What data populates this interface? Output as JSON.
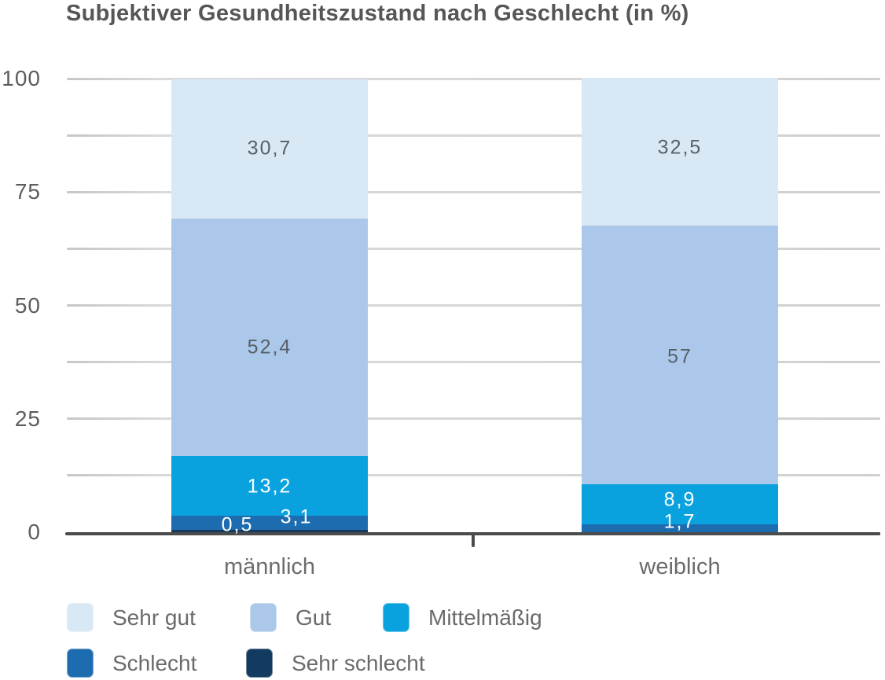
{
  "title": "Subjektiver Gesundheitszustand nach Geschlecht (in %)",
  "y_axis": {
    "tick_labels": [
      "100",
      "75",
      "50",
      "25",
      "0"
    ],
    "tick_values": [
      100,
      75,
      50,
      25,
      0
    ],
    "gridline_values": [
      100,
      87.5,
      75,
      62.5,
      50,
      37.5,
      25,
      12.5
    ]
  },
  "chart_data": {
    "type": "bar",
    "stacked": true,
    "orientation": "vertical",
    "title": "Subjektiver Gesundheitszustand nach Geschlecht (in %)",
    "categories": [
      "männlich",
      "weiblich"
    ],
    "series": [
      {
        "name": "Sehr gut",
        "color": "#d9e8f5",
        "label_color": "#57606a",
        "values": [
          30.7,
          32.5
        ],
        "value_labels": [
          "30,7",
          "32,5"
        ],
        "label_offsets": [
          [
            0,
            0
          ],
          [
            0,
            -5
          ]
        ]
      },
      {
        "name": "Gut",
        "color": "#abc8ea",
        "label_color": "#57606a",
        "values": [
          52.4,
          57.0
        ],
        "value_labels": [
          "52,4",
          "57"
        ],
        "label_offsets": [
          [
            0,
            13
          ],
          [
            0,
            3
          ]
        ]
      },
      {
        "name": "Mittelmäßig",
        "color": "#0aa2de",
        "label_color": "#ffffff",
        "values": [
          13.2,
          8.9
        ],
        "value_labels": [
          "13,2",
          "8,9"
        ],
        "label_offsets": [
          [
            0,
            1
          ],
          [
            0,
            -6
          ]
        ]
      },
      {
        "name": "Schlecht",
        "color": "#1e6cb0",
        "label_color": "#ffffff",
        "values": [
          3.1,
          1.7
        ],
        "value_labels": [
          "3,1",
          "1,7"
        ],
        "label_offsets": [
          [
            34,
            -7
          ],
          [
            0,
            -8
          ]
        ]
      },
      {
        "name": "Sehr schlecht",
        "color": "#133a60",
        "label_color": "#ffffff",
        "values": [
          0.5,
          0
        ],
        "value_labels": [
          "0,5",
          ""
        ],
        "label_offsets": [
          [
            -41,
            -8
          ],
          [
            0,
            0
          ]
        ]
      }
    ],
    "ylim": [
      0,
      100
    ],
    "yticks": [
      0,
      25,
      50,
      75,
      100
    ],
    "grid": true,
    "legend_position": "bottom"
  },
  "legend": {
    "rows": [
      [
        {
          "label": "Sehr gut",
          "color": "#d9e8f5"
        },
        {
          "label": "Gut",
          "color": "#abc8ea"
        },
        {
          "label": "Mittelmäßig",
          "color": "#0aa2de"
        }
      ],
      [
        {
          "label": "Schlecht",
          "color": "#1e6cb0"
        },
        {
          "label": "Sehr schlecht",
          "color": "#133a60"
        }
      ]
    ]
  },
  "colors": {
    "grid": "#d6d6d6",
    "axis": "#4b4b4b",
    "title_text": "#565656",
    "axis_text": "#5d5d5d",
    "legend_text": "#6a6a6a"
  }
}
